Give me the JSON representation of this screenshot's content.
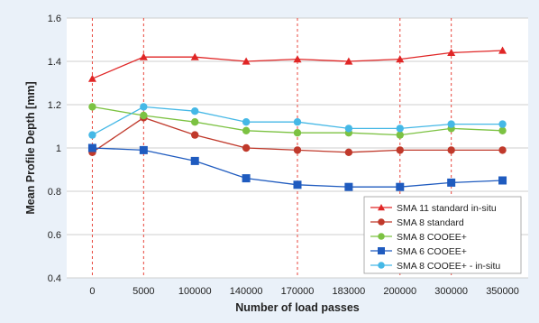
{
  "chart_data": {
    "type": "line",
    "title": "",
    "xlabel": "Number of load passes",
    "ylabel": "Mean Profile Depth [mm]",
    "categories": [
      "0",
      "5000",
      "100000",
      "140000",
      "170000",
      "183000",
      "200000",
      "300000",
      "350000"
    ],
    "ylim": [
      0.4,
      1.6
    ],
    "yticks": [
      "0.4",
      "0.6",
      "0.8",
      "1",
      "1.2",
      "1.4",
      "1.6"
    ],
    "ytick_values": [
      0.4,
      0.6,
      0.8,
      1.0,
      1.2,
      1.4,
      1.6
    ],
    "grid": "horizontal",
    "legend_position": "bottom-right",
    "vertical_reference_lines_at": [
      "0",
      "5000",
      "170000",
      "200000",
      "300000"
    ],
    "series": [
      {
        "name": "SMA 11 standard in-situ",
        "color": "#e02626",
        "marker": "triangle",
        "values": [
          1.32,
          1.42,
          1.42,
          1.4,
          1.41,
          1.4,
          1.41,
          1.44,
          1.45
        ]
      },
      {
        "name": "SMA 8 standard",
        "color": "#c0392b",
        "marker": "circle",
        "values": [
          0.98,
          1.14,
          1.06,
          1.0,
          0.99,
          0.98,
          0.99,
          0.99,
          0.99
        ]
      },
      {
        "name": "SMA 8 COOEE+",
        "color": "#7cc242",
        "marker": "circle",
        "values": [
          1.19,
          1.15,
          1.12,
          1.08,
          1.07,
          1.07,
          1.06,
          1.09,
          1.08
        ]
      },
      {
        "name": "SMA 6 COOEE+",
        "color": "#1f5bbf",
        "marker": "square",
        "values": [
          1.0,
          0.99,
          0.94,
          0.86,
          0.83,
          0.82,
          0.82,
          0.84,
          0.85
        ]
      },
      {
        "name": "SMA 8 COOEE+ - in-situ",
        "color": "#45b8e6",
        "marker": "circle",
        "values": [
          1.06,
          1.19,
          1.17,
          1.12,
          1.12,
          1.09,
          1.09,
          1.11,
          1.11
        ]
      }
    ]
  }
}
